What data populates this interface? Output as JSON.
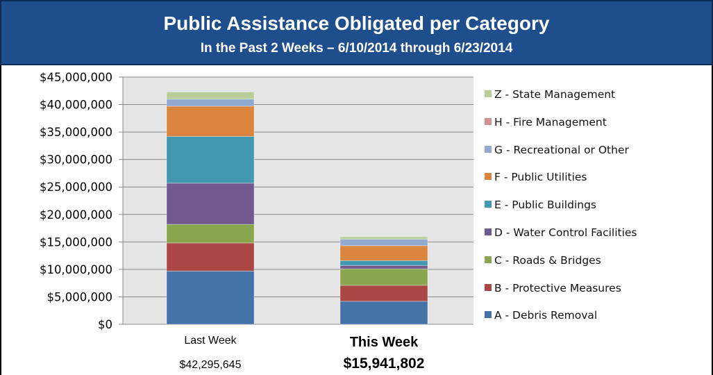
{
  "header": {
    "title": "Public Assistance Obligated per Category",
    "subtitle": "In the Past 2 Weeks – 6/10/2014 through 6/23/2014"
  },
  "colors": {
    "header_bg": "#1f4e8c",
    "plot_bg": "#e6e6e6",
    "A": "#4572a7",
    "B": "#aa4643",
    "C": "#89a54e",
    "D": "#71588f",
    "E": "#4198af",
    "F": "#db843d",
    "G": "#93a9cf",
    "H": "#d19392",
    "Z": "#b9cd96"
  },
  "chart_data": {
    "type": "bar",
    "stacked": true,
    "categories": [
      "Last Week",
      "This Week"
    ],
    "category_totals": [
      "$42,295,645",
      "$15,941,802"
    ],
    "ylim": [
      0,
      45000000
    ],
    "yticks": [
      "$0",
      "$5,000,000",
      "$10,000,000",
      "$15,000,000",
      "$20,000,000",
      "$25,000,000",
      "$30,000,000",
      "$35,000,000",
      "$40,000,000",
      "$45,000,000"
    ],
    "ytick_values": [
      0,
      5000000,
      10000000,
      15000000,
      20000000,
      25000000,
      30000000,
      35000000,
      40000000,
      45000000
    ],
    "grid": true,
    "legend_position": "right",
    "series": [
      {
        "name": "A - Debris Removal",
        "key": "A",
        "values": [
          9700000,
          4200000
        ]
      },
      {
        "name": "B - Protective Measures",
        "key": "B",
        "values": [
          5100000,
          2900000
        ]
      },
      {
        "name": "C - Roads & Bridges",
        "key": "C",
        "values": [
          3400000,
          3000000
        ]
      },
      {
        "name": "D - Water Control Facilities",
        "key": "D",
        "values": [
          7500000,
          600000
        ]
      },
      {
        "name": "E - Public Buildings",
        "key": "E",
        "values": [
          8500000,
          900000
        ]
      },
      {
        "name": "F - Public Utilities",
        "key": "F",
        "values": [
          5500000,
          2700000
        ]
      },
      {
        "name": "G - Recreational or Other",
        "key": "G",
        "values": [
          1300000,
          1200000
        ]
      },
      {
        "name": "H - Fire Management",
        "key": "H",
        "values": [
          0,
          0
        ]
      },
      {
        "name": "Z - State Management",
        "key": "Z",
        "values": [
          1300000,
          440000
        ]
      }
    ]
  }
}
